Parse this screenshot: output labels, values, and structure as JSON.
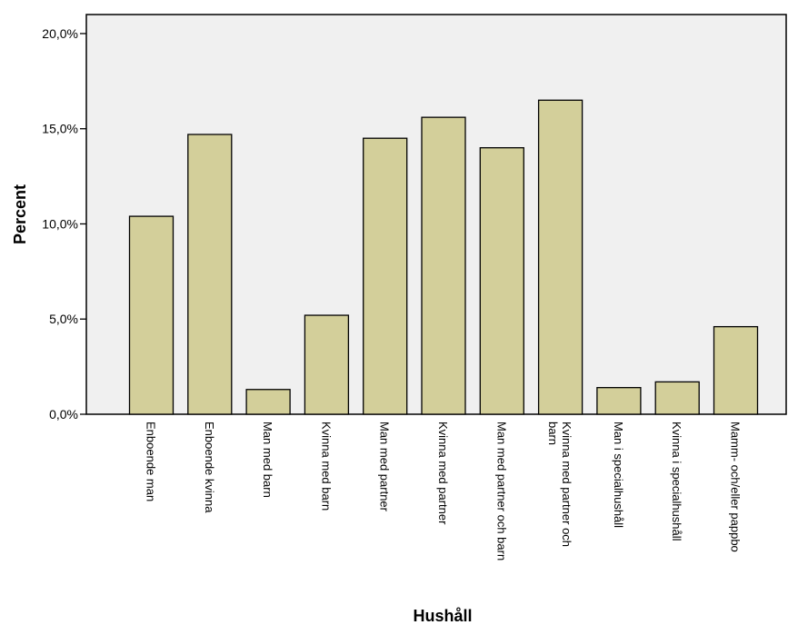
{
  "chart_data": {
    "type": "bar",
    "xlabel": "Hushåll",
    "ylabel": "Percent",
    "ylim": [
      0,
      21
    ],
    "yticks": [
      {
        "value": 0,
        "label": "0,0%"
      },
      {
        "value": 5,
        "label": "5,0%"
      },
      {
        "value": 10,
        "label": "10,0%"
      },
      {
        "value": 15,
        "label": "15,0%"
      },
      {
        "value": 20,
        "label": "20,0%"
      }
    ],
    "categories": [
      [
        "Enboende man"
      ],
      [
        "Enboende kvinna"
      ],
      [
        "Man med barn"
      ],
      [
        "Kvinna med barn"
      ],
      [
        "Man med partner"
      ],
      [
        "Kvinna med partner"
      ],
      [
        "Man med partner och barn"
      ],
      [
        "Kvinna med partner och",
        "barn"
      ],
      [
        "Man i specialhushåll"
      ],
      [
        "Kvinna i specialhushåll"
      ],
      [
        "Mamm- och/eller pappbo"
      ]
    ],
    "values": [
      10.4,
      14.7,
      1.3,
      5.2,
      14.5,
      15.6,
      14.0,
      16.5,
      1.4,
      1.7,
      4.6
    ],
    "grid": false,
    "legend": "none",
    "colors": {
      "bar_fill": "#d3cf9a",
      "bar_stroke": "#000000",
      "plot_background": "#f0f0f0",
      "axis": "#000000"
    }
  }
}
